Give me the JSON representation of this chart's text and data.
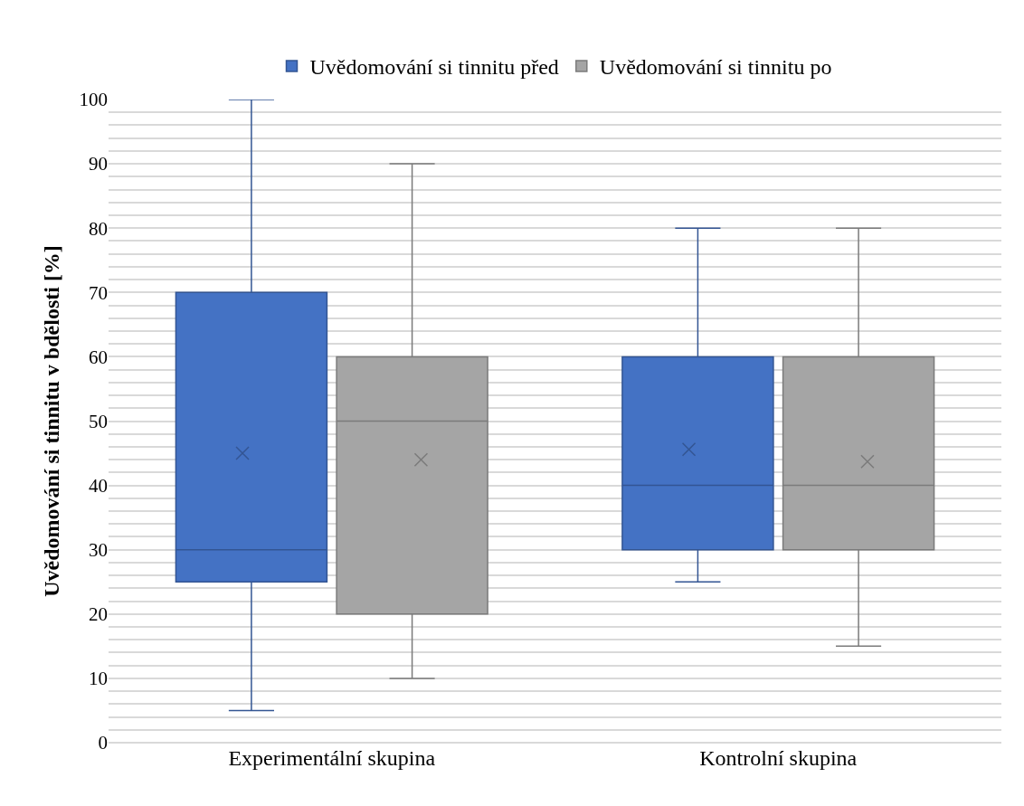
{
  "chart_data": {
    "type": "box",
    "ylabel": "Uvědomování si tinnitu v bdělosti [%]",
    "categories": [
      "Experimentální skupina",
      "Kontrolní skupina"
    ],
    "series": [
      {
        "name": "Uvědomování si tinnitu před",
        "color": "#4472c4",
        "boxes": [
          {
            "low": 5,
            "q1": 25,
            "median": 30,
            "q3": 70,
            "high": 100,
            "mean": 45
          },
          {
            "low": 25,
            "q1": 30,
            "median": 40,
            "q3": 60,
            "high": 80,
            "mean": 45.6
          }
        ]
      },
      {
        "name": "Uvědomování si tinnitu po",
        "color": "#a5a5a5",
        "boxes": [
          {
            "low": 10,
            "q1": 20,
            "median": 50,
            "q3": 60,
            "high": 90,
            "mean": 44
          },
          {
            "low": 15,
            "q1": 30,
            "median": 40,
            "q3": 60,
            "high": 80,
            "mean": 43.7
          }
        ]
      }
    ],
    "ylim": [
      0,
      100
    ],
    "yticks": [
      0,
      {
        "value": 2,
        "label": null
      },
      {
        "value": 4,
        "label": null
      },
      {
        "value": 6,
        "label": null
      },
      {
        "value": 8,
        "label": null
      },
      10,
      {
        "value": 12,
        "label": null
      },
      {
        "value": 14,
        "label": null
      },
      {
        "value": 16,
        "label": null
      },
      {
        "value": 18,
        "label": null
      },
      20,
      {
        "value": 22,
        "label": null
      },
      {
        "value": 24,
        "label": null
      },
      {
        "value": 26,
        "label": null
      },
      {
        "value": 28,
        "label": null
      },
      30,
      {
        "value": 32,
        "label": null
      },
      {
        "value": 34,
        "label": null
      },
      {
        "value": 36,
        "label": null
      },
      {
        "value": 38,
        "label": null
      },
      40,
      {
        "value": 42,
        "label": null
      },
      {
        "value": 44,
        "label": null
      },
      {
        "value": 46,
        "label": null
      },
      {
        "value": 48,
        "label": null
      },
      50,
      {
        "value": 52,
        "label": null
      },
      {
        "value": 54,
        "label": null
      },
      {
        "value": 56,
        "label": null
      },
      {
        "value": 58,
        "label": null
      },
      60,
      {
        "value": 62,
        "label": null
      },
      {
        "value": 64,
        "label": null
      },
      {
        "value": 66,
        "label": null
      },
      {
        "value": 68,
        "label": null
      },
      70,
      {
        "value": 72,
        "label": null
      },
      {
        "value": 74,
        "label": null
      },
      {
        "value": 76,
        "label": null
      },
      {
        "value": 78,
        "label": null
      },
      80,
      {
        "value": 82,
        "label": null
      },
      {
        "value": 84,
        "label": null
      },
      {
        "value": 86,
        "label": null
      },
      {
        "value": 88,
        "label": null
      },
      90,
      {
        "value": 92,
        "label": null
      },
      {
        "value": 94,
        "label": null
      },
      {
        "value": 96,
        "label": null
      },
      {
        "value": 98,
        "label": null
      },
      100
    ],
    "grid": "y",
    "legend": "top",
    "marker": "cross"
  }
}
